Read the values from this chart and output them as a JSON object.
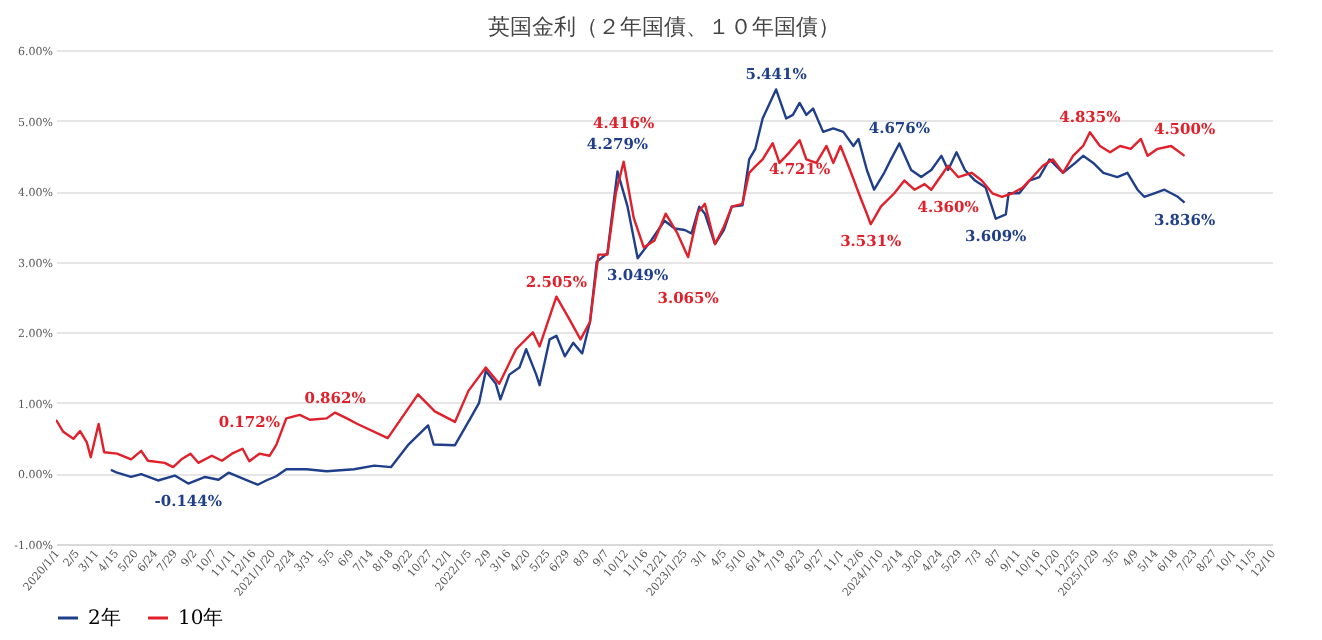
{
  "chart_data": {
    "type": "line",
    "title": "英国金利（２年国債、１０年国債）",
    "xlim": [
      "2020-01-01",
      "2025-12-10"
    ],
    "xticks": [
      {
        "value": "2020-01-01",
        "label": "2020/1/1"
      },
      {
        "value": "2020-02-05",
        "label": "2/5"
      },
      {
        "value": "2020-03-11",
        "label": "3/11"
      },
      {
        "value": "2020-04-15",
        "label": "4/15"
      },
      {
        "value": "2020-05-20",
        "label": "5/20"
      },
      {
        "value": "2020-06-24",
        "label": "6/24"
      },
      {
        "value": "2020-07-29",
        "label": "7/29"
      },
      {
        "value": "2020-09-02",
        "label": "9/2"
      },
      {
        "value": "2020-10-07",
        "label": "10/7"
      },
      {
        "value": "2020-11-11",
        "label": "11/11"
      },
      {
        "value": "2020-12-16",
        "label": "12/16"
      },
      {
        "value": "2021-01-20",
        "label": "2021/1/20"
      },
      {
        "value": "2021-02-24",
        "label": "2/24"
      },
      {
        "value": "2021-03-31",
        "label": "3/31"
      },
      {
        "value": "2021-05-05",
        "label": "5/5"
      },
      {
        "value": "2021-06-09",
        "label": "6/9"
      },
      {
        "value": "2021-07-14",
        "label": "7/14"
      },
      {
        "value": "2021-08-18",
        "label": "8/18"
      },
      {
        "value": "2021-09-22",
        "label": "9/22"
      },
      {
        "value": "2021-10-27",
        "label": "10/27"
      },
      {
        "value": "2021-12-01",
        "label": "12/1"
      },
      {
        "value": "2022-01-05",
        "label": "2022/1/5"
      },
      {
        "value": "2022-02-09",
        "label": "2/9"
      },
      {
        "value": "2022-03-16",
        "label": "3/16"
      },
      {
        "value": "2022-04-20",
        "label": "4/20"
      },
      {
        "value": "2022-05-25",
        "label": "5/25"
      },
      {
        "value": "2022-06-29",
        "label": "6/29"
      },
      {
        "value": "2022-08-03",
        "label": "8/3"
      },
      {
        "value": "2022-09-07",
        "label": "9/7"
      },
      {
        "value": "2022-10-12",
        "label": "10/12"
      },
      {
        "value": "2022-11-16",
        "label": "11/16"
      },
      {
        "value": "2022-12-21",
        "label": "12/21"
      },
      {
        "value": "2023-01-25",
        "label": "2023/1/25"
      },
      {
        "value": "2023-03-01",
        "label": "3/1"
      },
      {
        "value": "2023-04-05",
        "label": "4/5"
      },
      {
        "value": "2023-05-10",
        "label": "5/10"
      },
      {
        "value": "2023-06-14",
        "label": "6/14"
      },
      {
        "value": "2023-07-19",
        "label": "7/19"
      },
      {
        "value": "2023-08-23",
        "label": "8/23"
      },
      {
        "value": "2023-09-27",
        "label": "9/27"
      },
      {
        "value": "2023-11-01",
        "label": "11/1"
      },
      {
        "value": "2023-12-06",
        "label": "12/6"
      },
      {
        "value": "2024-01-10",
        "label": "2024/1/10"
      },
      {
        "value": "2024-02-14",
        "label": "2/14"
      },
      {
        "value": "2024-03-20",
        "label": "3/20"
      },
      {
        "value": "2024-04-24",
        "label": "4/24"
      },
      {
        "value": "2024-05-29",
        "label": "5/29"
      },
      {
        "value": "2024-07-03",
        "label": "7/3"
      },
      {
        "value": "2024-08-07",
        "label": "8/7"
      },
      {
        "value": "2024-09-11",
        "label": "9/11"
      },
      {
        "value": "2024-10-16",
        "label": "10/16"
      },
      {
        "value": "2024-11-20",
        "label": "11/20"
      },
      {
        "value": "2024-12-25",
        "label": "12/25"
      },
      {
        "value": "2025-01-29",
        "label": "2025/1/29"
      },
      {
        "value": "2025-03-05",
        "label": "3/5"
      },
      {
        "value": "2025-04-09",
        "label": "4/9"
      },
      {
        "value": "2025-05-14",
        "label": "5/14"
      },
      {
        "value": "2025-06-18",
        "label": "6/18"
      },
      {
        "value": "2025-07-23",
        "label": "7/23"
      },
      {
        "value": "2025-08-27",
        "label": "8/27"
      },
      {
        "value": "2025-10-01",
        "label": "10/1"
      },
      {
        "value": "2025-11-05",
        "label": "11/5"
      },
      {
        "value": "2025-12-10",
        "label": "12/10"
      }
    ],
    "ylim": [
      -1,
      6
    ],
    "yticks": [
      {
        "value": -1,
        "label": "-1.00%"
      },
      {
        "value": 0,
        "label": "0.00%"
      },
      {
        "value": 1,
        "label": "1.00%"
      },
      {
        "value": 2,
        "label": "2.00%"
      },
      {
        "value": 3,
        "label": "3.00%"
      },
      {
        "value": 4,
        "label": "4.00%"
      },
      {
        "value": 5,
        "label": "5.00%"
      },
      {
        "value": 6,
        "label": "6.00%"
      }
    ],
    "grid": "y",
    "legend": "bottom",
    "series": [
      {
        "name": "2年",
        "color": "#203f8a",
        "x": [
          "2020-04-08",
          "2020-04-19",
          "2020-05-14",
          "2020-06-01",
          "2020-07-01",
          "2020-07-31",
          "2020-08-24",
          "2020-09-23",
          "2020-10-17",
          "2020-11-04",
          "2020-12-05",
          "2020-12-26",
          "2021-01-10",
          "2021-01-28",
          "2021-02-15",
          "2021-03-23",
          "2021-04-28",
          "2021-06-16",
          "2021-07-22",
          "2021-08-21",
          "2021-09-20",
          "2021-10-26",
          "2021-11-05",
          "2021-12-13",
          "2022-01-11",
          "2022-01-25",
          "2022-02-06",
          "2022-02-24",
          "2022-03-04",
          "2022-03-20",
          "2022-04-07",
          "2022-04-19",
          "2022-05-07",
          "2022-05-13",
          "2022-05-31",
          "2022-06-12",
          "2022-06-27",
          "2022-07-12",
          "2022-07-28",
          "2022-08-11",
          "2022-08-23",
          "2022-09-11",
          "2022-09-29",
          "2022-10-17",
          "2022-11-04",
          "2022-11-28",
          "2022-12-22",
          "2023-01-09",
          "2023-01-27",
          "2023-02-08",
          "2023-02-22",
          "2023-03-04",
          "2023-03-22",
          "2023-04-07",
          "2023-04-21",
          "2023-05-10",
          "2023-05-22",
          "2023-06-02",
          "2023-06-15",
          "2023-07-09",
          "2023-07-27",
          "2023-08-08",
          "2023-08-20",
          "2023-09-01",
          "2023-09-13",
          "2023-10-01",
          "2023-10-19",
          "2023-11-06",
          "2023-11-24",
          "2023-12-03",
          "2023-12-18",
          "2023-12-31",
          "2024-01-18",
          "2024-01-30",
          "2024-02-14",
          "2024-03-06",
          "2024-03-24",
          "2024-04-11",
          "2024-04-29",
          "2024-05-11",
          "2024-05-26",
          "2024-06-10",
          "2024-06-28",
          "2024-07-17",
          "2024-08-04",
          "2024-08-22",
          "2024-08-27",
          "2024-09-15",
          "2024-10-03",
          "2024-10-21",
          "2024-11-08",
          "2024-12-02",
          "2024-12-24",
          "2025-01-07",
          "2025-01-25",
          "2025-02-12",
          "2025-03-09",
          "2025-03-27",
          "2025-04-14",
          "2025-04-26",
          "2025-05-14",
          "2025-06-01",
          "2025-06-25",
          "2025-07-07"
        ],
        "values": [
          0.05,
          0.01,
          -0.05,
          -0.01,
          -0.1,
          -0.03,
          -0.144,
          -0.05,
          -0.09,
          0.01,
          -0.09,
          -0.16,
          -0.1,
          -0.04,
          0.06,
          0.06,
          0.03,
          0.06,
          0.11,
          0.09,
          0.4,
          0.68,
          0.41,
          0.4,
          0.8,
          1.0,
          1.45,
          1.27,
          1.05,
          1.4,
          1.5,
          1.76,
          1.4,
          1.25,
          1.9,
          1.95,
          1.66,
          1.85,
          1.7,
          2.15,
          3.0,
          3.12,
          4.279,
          3.78,
          3.049,
          3.3,
          3.58,
          3.47,
          3.45,
          3.4,
          3.78,
          3.68,
          3.25,
          3.45,
          3.78,
          3.8,
          4.45,
          4.6,
          5.03,
          5.441,
          5.03,
          5.08,
          5.25,
          5.08,
          5.17,
          4.84,
          4.89,
          4.84,
          4.64,
          4.74,
          4.3,
          4.02,
          4.26,
          4.45,
          4.676,
          4.3,
          4.2,
          4.3,
          4.5,
          4.3,
          4.55,
          4.3,
          4.15,
          4.05,
          3.609,
          3.67,
          3.97,
          3.97,
          4.15,
          4.2,
          4.45,
          4.26,
          4.4,
          4.5,
          4.4,
          4.26,
          4.2,
          4.26,
          4.02,
          3.92,
          3.97,
          4.02,
          3.92,
          3.836
        ]
      },
      {
        "name": "10年",
        "color": "#e0202a",
        "x": [
          "2020-01-01",
          "2020-01-14",
          "2020-02-01",
          "2020-02-13",
          "2020-02-25",
          "2020-03-03",
          "2020-03-17",
          "2020-03-27",
          "2020-04-19",
          "2020-05-14",
          "2020-06-01",
          "2020-06-13",
          "2020-07-13",
          "2020-07-28",
          "2020-08-12",
          "2020-08-28",
          "2020-09-11",
          "2020-10-05",
          "2020-10-23",
          "2020-11-10",
          "2020-11-29",
          "2020-12-11",
          "2020-12-29",
          "2021-01-16",
          "2021-01-28",
          "2021-02-15",
          "2021-03-11",
          "2021-03-29",
          "2021-04-28",
          "2021-05-13",
          "2021-06-03",
          "2021-06-22",
          "2021-08-15",
          "2021-10-08",
          "2021-11-07",
          "2021-12-13",
          "2022-01-06",
          "2022-02-06",
          "2022-03-02",
          "2022-04-01",
          "2022-05-01",
          "2022-05-13",
          "2022-06-12",
          "2022-07-04",
          "2022-07-25",
          "2022-08-11",
          "2022-08-26",
          "2022-09-11",
          "2022-09-26",
          "2022-10-10",
          "2022-10-28",
          "2022-11-15",
          "2022-12-04",
          "2022-12-24",
          "2023-01-14",
          "2023-02-02",
          "2023-02-20",
          "2023-03-04",
          "2023-03-22",
          "2023-04-07",
          "2023-04-21",
          "2023-05-10",
          "2023-05-22",
          "2023-06-02",
          "2023-06-15",
          "2023-07-03",
          "2023-07-15",
          "2023-08-02",
          "2023-08-20",
          "2023-09-01",
          "2023-09-19",
          "2023-10-07",
          "2023-10-19",
          "2023-11-01",
          "2023-11-18",
          "2023-12-06",
          "2023-12-18",
          "2023-12-25",
          "2024-01-12",
          "2024-02-05",
          "2024-02-23",
          "2024-03-12",
          "2024-03-30",
          "2024-04-11",
          "2024-05-11",
          "2024-05-29",
          "2024-06-22",
          "2024-07-10",
          "2024-07-29",
          "2024-08-15",
          "2024-09-03",
          "2024-09-21",
          "2024-10-09",
          "2024-10-27",
          "2024-11-14",
          "2024-12-02",
          "2024-12-20",
          "2025-01-07",
          "2025-01-19",
          "2025-02-06",
          "2025-02-24",
          "2025-03-14",
          "2025-04-02",
          "2025-04-20",
          "2025-05-02",
          "2025-05-20",
          "2025-06-13",
          "2025-07-07"
        ],
        "values": [
          0.76,
          0.59,
          0.49,
          0.6,
          0.44,
          0.23,
          0.7,
          0.3,
          0.28,
          0.2,
          0.32,
          0.18,
          0.15,
          0.09,
          0.2,
          0.28,
          0.15,
          0.25,
          0.18,
          0.28,
          0.35,
          0.172,
          0.28,
          0.25,
          0.4,
          0.78,
          0.83,
          0.76,
          0.78,
          0.862,
          0.78,
          0.7,
          0.5,
          1.12,
          0.88,
          0.73,
          1.17,
          1.5,
          1.27,
          1.76,
          2.0,
          1.8,
          2.505,
          2.2,
          1.9,
          2.15,
          3.1,
          3.1,
          3.97,
          4.416,
          3.62,
          3.2,
          3.3,
          3.68,
          3.4,
          3.065,
          3.7,
          3.82,
          3.25,
          3.5,
          3.78,
          3.82,
          4.26,
          4.35,
          4.45,
          4.68,
          4.4,
          4.55,
          4.721,
          4.45,
          4.4,
          4.64,
          4.4,
          4.64,
          4.3,
          3.92,
          3.68,
          3.531,
          3.78,
          3.97,
          4.15,
          4.02,
          4.1,
          4.02,
          4.36,
          4.2,
          4.26,
          4.15,
          3.97,
          3.92,
          3.97,
          4.05,
          4.2,
          4.36,
          4.45,
          4.26,
          4.5,
          4.64,
          4.835,
          4.64,
          4.55,
          4.64,
          4.6,
          4.74,
          4.5,
          4.6,
          4.64,
          4.5
        ]
      }
    ],
    "annotations": [
      {
        "text": "-0.144%",
        "x": "2020-08-24",
        "y": -0.144
      },
      {
        "text": "0.172%",
        "x": "2020-12-11",
        "y": 0.172
      },
      {
        "text": "0.862%",
        "x": "2021-05-13",
        "y": 0.862
      },
      {
        "text": "2.505%",
        "x": "2022-06-12",
        "y": 2.505
      },
      {
        "text": "4.279%",
        "x": "2022-09-29",
        "y": 4.279
      },
      {
        "text": "4.416%",
        "x": "2022-10-10",
        "y": 4.416
      },
      {
        "text": "3.049%",
        "x": "2022-11-04",
        "y": 3.049
      },
      {
        "text": "3.065%",
        "x": "2023-02-02",
        "y": 3.065
      },
      {
        "text": "5.441%",
        "x": "2023-07-09",
        "y": 5.441
      },
      {
        "text": "4.721%",
        "x": "2023-08-20",
        "y": 4.721
      },
      {
        "text": "3.531%",
        "x": "2023-12-25",
        "y": 3.531
      },
      {
        "text": "4.676%",
        "x": "2024-02-14",
        "y": 4.676
      },
      {
        "text": "4.360%",
        "x": "2024-05-11",
        "y": 4.36
      },
      {
        "text": "3.609%",
        "x": "2024-08-04",
        "y": 3.609
      },
      {
        "text": "4.835%",
        "x": "2025-01-19",
        "y": 4.835
      },
      {
        "text": "4.500%",
        "x": "2025-07-07",
        "y": 4.5
      },
      {
        "text": "3.836%",
        "x": "2025-07-07",
        "y": 3.836
      }
    ]
  }
}
